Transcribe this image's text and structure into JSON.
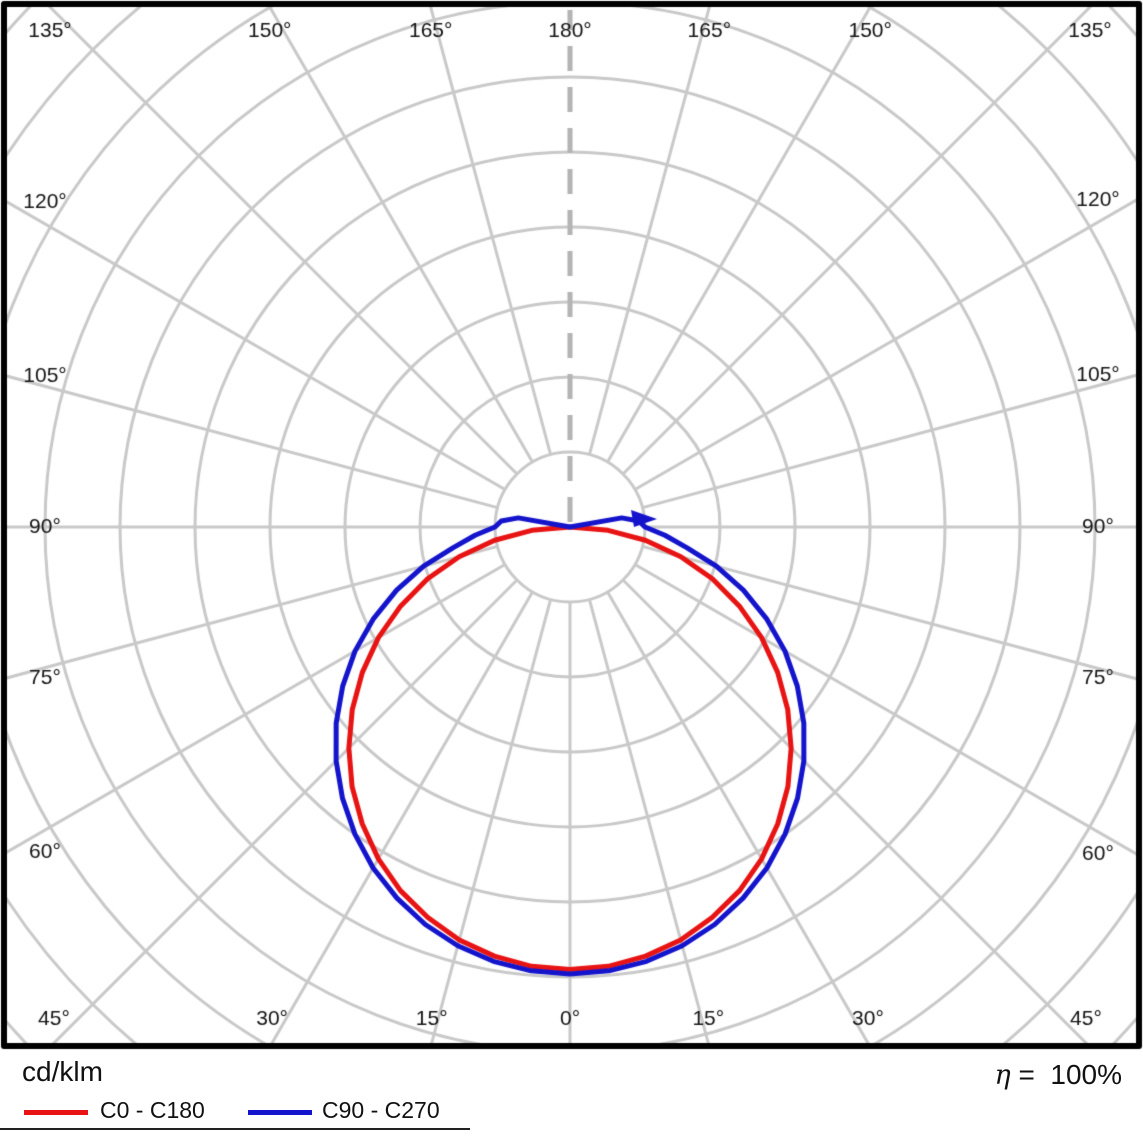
{
  "chart_data": {
    "type": "polar",
    "radial_axis_label": "cd/klm",
    "ring_step": 100,
    "rings": 10,
    "grid_color": "#c9c9c9",
    "axis_dash_color": "#b4b4b4",
    "angle_tick_suffix": "°",
    "angle_tick_labels": [
      {
        "angle": 0,
        "label": "0°"
      },
      {
        "angle": 15,
        "label": "15°"
      },
      {
        "angle": 30,
        "label": "30°"
      },
      {
        "angle": 45,
        "label": "45°"
      },
      {
        "angle": 60,
        "label": "60°"
      },
      {
        "angle": 75,
        "label": "75°"
      },
      {
        "angle": 90,
        "label": "90°"
      },
      {
        "angle": 105,
        "label": "105°"
      },
      {
        "angle": 120,
        "label": "120°"
      },
      {
        "angle": 135,
        "label": "135°"
      },
      {
        "angle": 150,
        "label": "150°"
      },
      {
        "angle": 165,
        "label": "165°"
      },
      {
        "angle": 180,
        "label": "180°"
      }
    ],
    "series": [
      {
        "name": "C0 - C180",
        "color": "#e81313",
        "gamma_deg": [
          0,
          5,
          10,
          15,
          20,
          25,
          30,
          35,
          40,
          45,
          50,
          55,
          60,
          65,
          70,
          75,
          80,
          85,
          90
        ],
        "values_cd_klm": [
          590,
          588,
          581,
          570,
          554,
          535,
          511,
          483,
          452,
          417,
          379,
          338,
          295,
          249,
          202,
          153,
          102,
          51,
          0
        ]
      },
      {
        "name": "C90 - C270",
        "color": "#1414cc",
        "gamma_deg": [
          0,
          5,
          10,
          15,
          20,
          25,
          30,
          35,
          40,
          45,
          50,
          55,
          60,
          65,
          70,
          75,
          80,
          85,
          90,
          95,
          100,
          105
        ],
        "values_cd_klm": [
          596,
          594,
          588,
          578,
          564,
          546,
          525,
          500,
          472,
          441,
          407,
          370,
          331,
          289,
          246,
          202,
          158,
          127,
          100,
          92,
          70,
          0
        ]
      }
    ]
  },
  "footer": {
    "efficiency_symbol": "η",
    "efficiency_value": "=  100%"
  }
}
